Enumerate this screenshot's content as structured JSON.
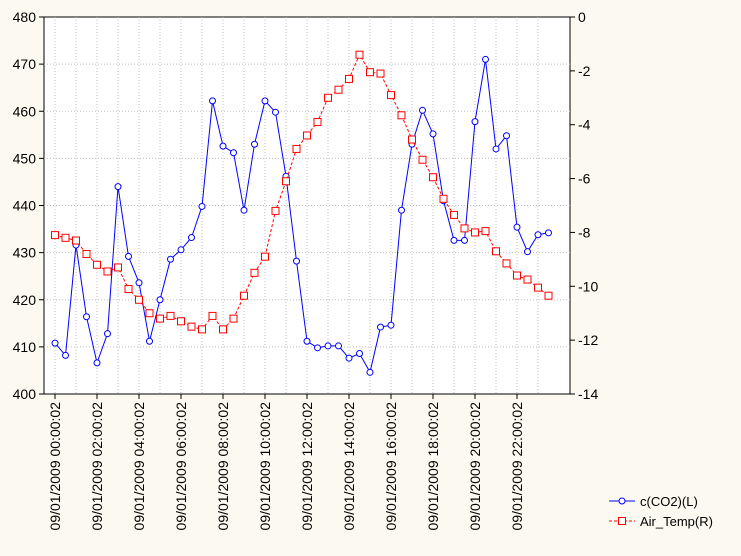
{
  "chart_data": {
    "type": "line",
    "title": "",
    "xlabel": "",
    "x_tick_labels": [
      "09/01/2009 00:00:02",
      "09/01/2009 02:00:02",
      "09/01/2009 04:00:02",
      "09/01/2009 06:00:02",
      "09/01/2009 08:00:02",
      "09/01/2009 10:00:02",
      "09/01/2009 12:00:02",
      "09/01/2009 14:00:02",
      "09/01/2009 16:00:02",
      "09/01/2009 18:00:02",
      "09/01/2009 20:00:02",
      "09/01/2009 22:00:02"
    ],
    "x_hours": [
      0,
      0.5,
      1,
      1.5,
      2,
      2.5,
      3,
      3.5,
      4,
      4.5,
      5,
      5.5,
      6,
      6.5,
      7,
      7.5,
      8,
      8.5,
      9,
      9.5,
      10,
      10.5,
      11,
      11.5,
      12,
      12.5,
      13,
      13.5,
      14,
      14.5,
      15,
      15.5,
      16,
      16.5,
      17,
      17.5,
      18,
      18.5,
      19,
      19.5,
      20,
      20.5,
      21,
      21.5,
      22,
      22.5,
      23,
      23.5
    ],
    "left_axis": {
      "ylim": [
        400,
        480
      ],
      "ticks": [
        400,
        410,
        420,
        430,
        440,
        450,
        460,
        470,
        480
      ]
    },
    "right_axis": {
      "ylim": [
        -14,
        0
      ],
      "ticks": [
        -14,
        -12,
        -10,
        -8,
        -6,
        -4,
        -2,
        0
      ]
    },
    "grid": true,
    "legend_position": "bottom-right",
    "series": [
      {
        "name": "c(CO2)(L)",
        "axis": "left",
        "color": "#0000ff",
        "marker": "circle",
        "line_style": "solid",
        "values": [
          410.8,
          408.2,
          431.6,
          416.4,
          406.6,
          412.8,
          444.0,
          429.2,
          423.6,
          411.2,
          420.0,
          428.6,
          430.6,
          433.2,
          439.8,
          462.2,
          452.6,
          451.2,
          439.0,
          453.0,
          462.2,
          459.8,
          446.2,
          428.2,
          411.2,
          409.8,
          410.2,
          410.2,
          407.6,
          408.6,
          404.6,
          414.2,
          414.6,
          439.0,
          453.0,
          460.2,
          455.2,
          441.0,
          432.6,
          432.6,
          457.8,
          471.0,
          452.0,
          454.8,
          435.4,
          430.2,
          433.8,
          434.2
        ]
      },
      {
        "name": "Air_Temp(R)",
        "axis": "right",
        "color": "#ff0000",
        "marker": "square",
        "line_style": "dashed",
        "values": [
          -8.1,
          -8.2,
          -8.3,
          -8.8,
          -9.2,
          -9.45,
          -9.3,
          -10.1,
          -10.5,
          -11.0,
          -11.2,
          -11.1,
          -11.3,
          -11.5,
          -11.6,
          -11.1,
          -11.6,
          -11.2,
          -10.35,
          -9.5,
          -8.9,
          -7.2,
          -6.1,
          -4.9,
          -4.4,
          -3.9,
          -3.0,
          -2.7,
          -2.3,
          -1.4,
          -2.05,
          -2.1,
          -2.9,
          -3.65,
          -4.55,
          -5.3,
          -5.95,
          -6.75,
          -7.35,
          -7.85,
          -8.0,
          -7.95,
          -8.7,
          -9.15,
          -9.6,
          -9.75,
          -10.05,
          -10.35
        ]
      }
    ]
  }
}
